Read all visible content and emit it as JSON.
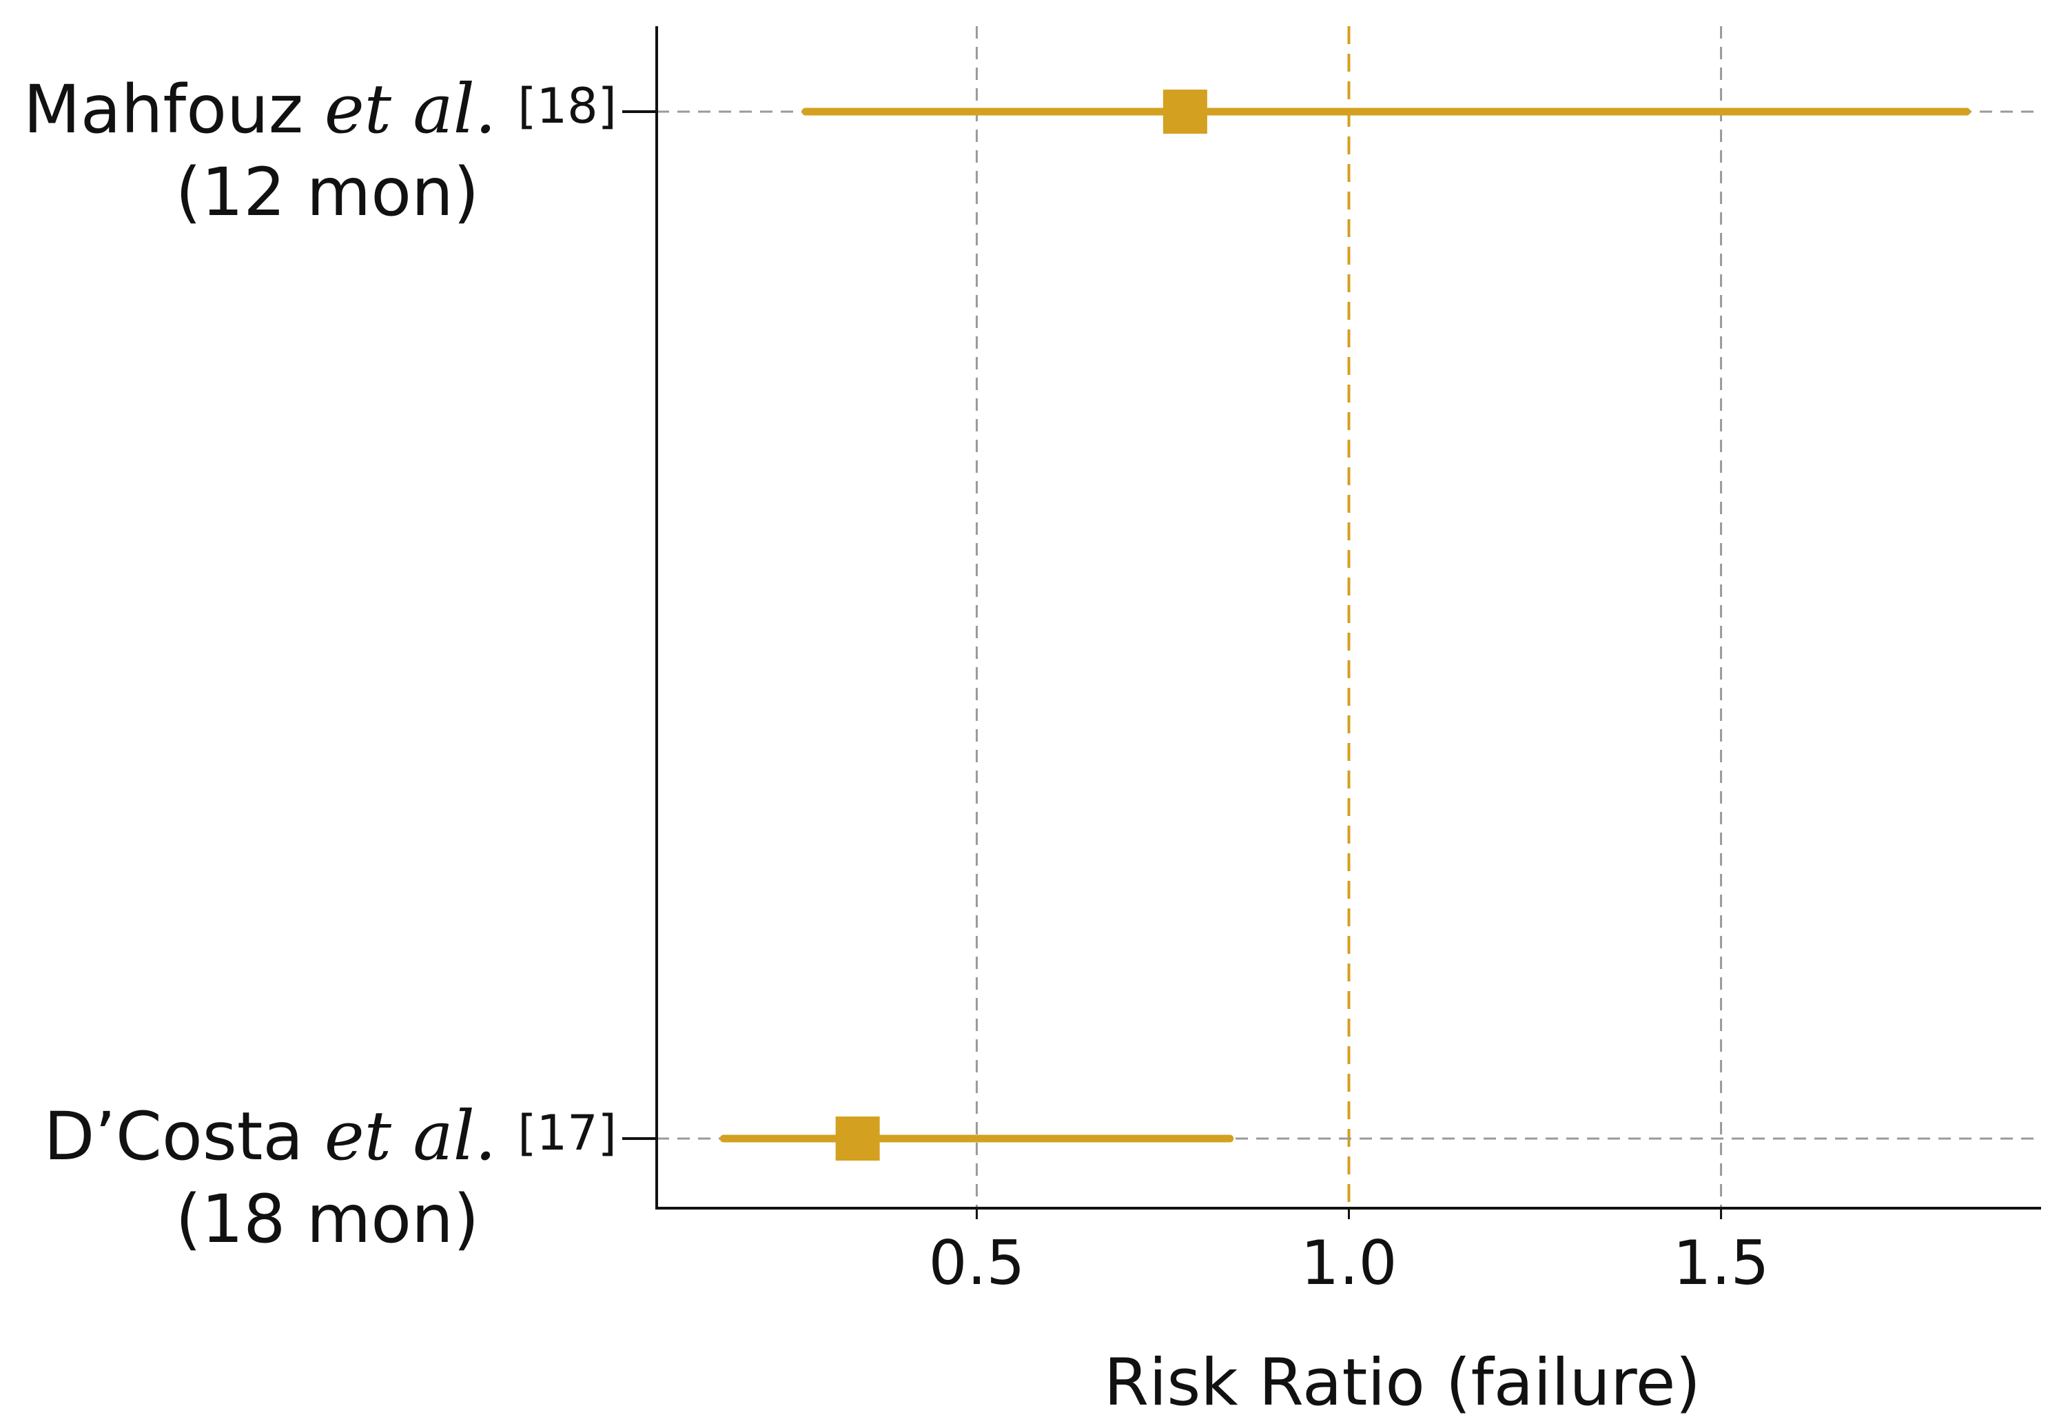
{
  "chart_data": {
    "type": "forest",
    "xlabel": "Risk Ratio (failure)",
    "xlim": [
      0.07,
      1.93
    ],
    "xticks": [
      0.5,
      1.0,
      1.5
    ],
    "xtick_labels": [
      "0.5",
      "1.0",
      "1.5"
    ],
    "reference_line": 1.0,
    "grid": "dashed",
    "color": "#D4A020",
    "studies": [
      {
        "name": "Mahfouz",
        "etal": "et al.",
        "ref": "[18]",
        "duration": "(12 mon)",
        "estimate": 0.78,
        "ci_low": 0.27,
        "ci_high": 1.83
      },
      {
        "name": "D’Costa",
        "etal": "et al.",
        "ref": "[17]",
        "duration": "(18 mon)",
        "estimate": 0.34,
        "ci_low": 0.16,
        "ci_high": 0.84
      }
    ]
  }
}
